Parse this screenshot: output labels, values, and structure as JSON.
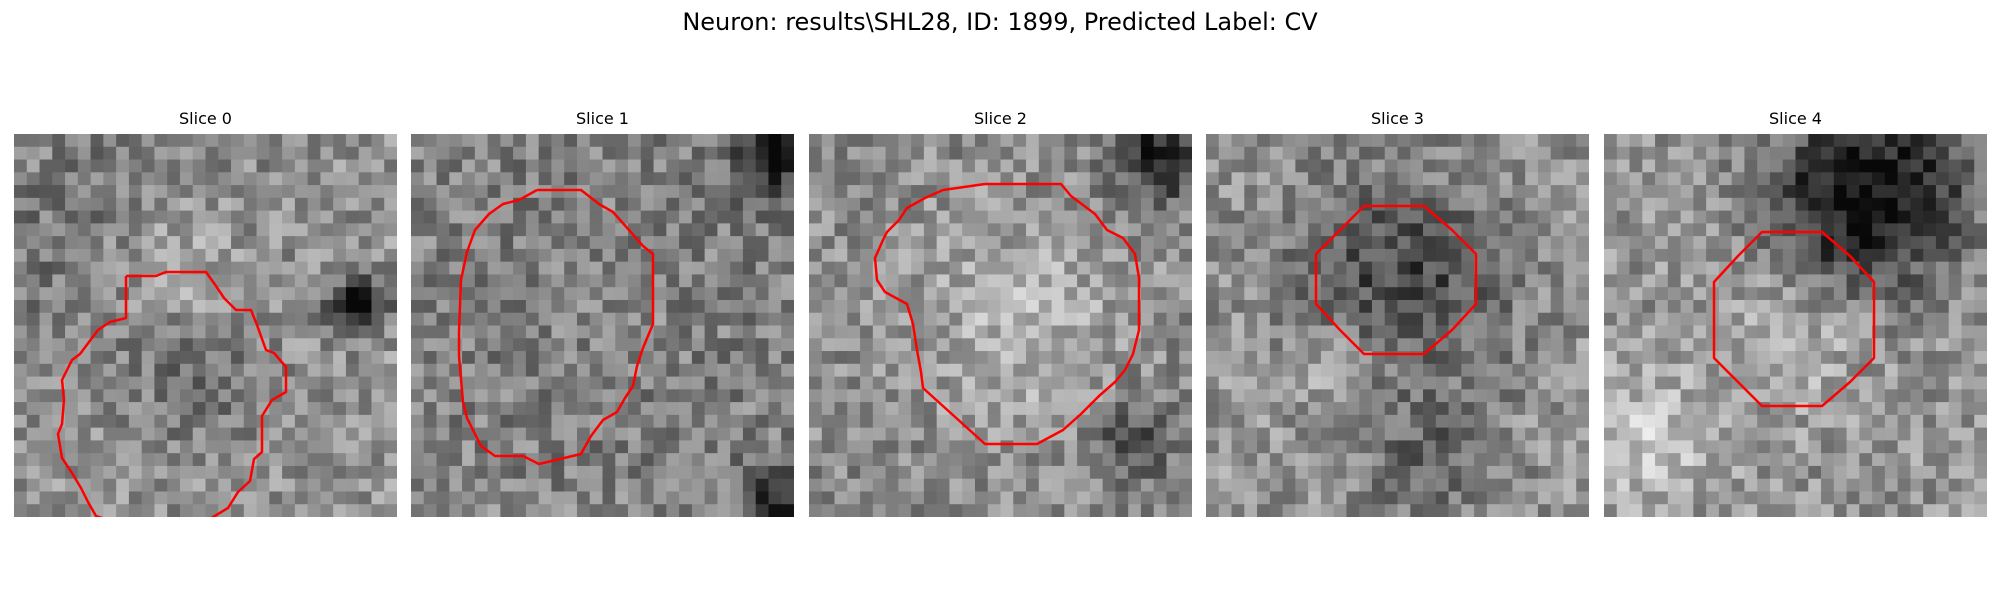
{
  "figure": {
    "title": "Neuron: results\\SHL28, ID: 1899, Predicted Label: CV",
    "contour_color": "#ff0000"
  },
  "panels": [
    {
      "title": "Slice 0",
      "seed": 11,
      "blobs": [
        [
          0.4,
          0.34,
          0.16,
          0.3
        ],
        [
          0.32,
          0.32,
          0.24,
          -0.25
        ],
        [
          0.9,
          0.45,
          0.05,
          -0.5
        ],
        [
          0.5,
          0.65,
          0.1,
          -0.15
        ]
      ]
    },
    {
      "title": "Slice 1",
      "seed": 23,
      "blobs": [
        [
          0.5,
          0.43,
          0.24,
          0.25
        ],
        [
          0.5,
          0.43,
          0.33,
          -0.3
        ],
        [
          0.95,
          0.05,
          0.08,
          -0.4
        ],
        [
          0.96,
          0.95,
          0.07,
          -0.4
        ]
      ]
    },
    {
      "title": "Slice 2",
      "seed": 37,
      "blobs": [
        [
          0.55,
          0.5,
          0.25,
          0.32
        ],
        [
          0.55,
          0.52,
          0.35,
          -0.2
        ],
        [
          0.92,
          0.05,
          0.09,
          -0.45
        ],
        [
          0.85,
          0.8,
          0.08,
          -0.25
        ]
      ]
    },
    {
      "title": "Slice 3",
      "seed": 49,
      "blobs": [
        [
          0.55,
          0.38,
          0.18,
          -0.3
        ],
        [
          0.3,
          0.3,
          0.12,
          -0.1
        ],
        [
          0.6,
          0.85,
          0.12,
          -0.2
        ],
        [
          0.35,
          0.6,
          0.07,
          0.15
        ]
      ]
    },
    {
      "title": "Slice 4",
      "seed": 61,
      "blobs": [
        [
          0.72,
          0.12,
          0.18,
          -0.45
        ],
        [
          0.5,
          0.5,
          0.14,
          0.15
        ],
        [
          0.12,
          0.8,
          0.12,
          0.2
        ],
        [
          0.6,
          0.25,
          0.14,
          -0.2
        ]
      ]
    }
  ]
}
